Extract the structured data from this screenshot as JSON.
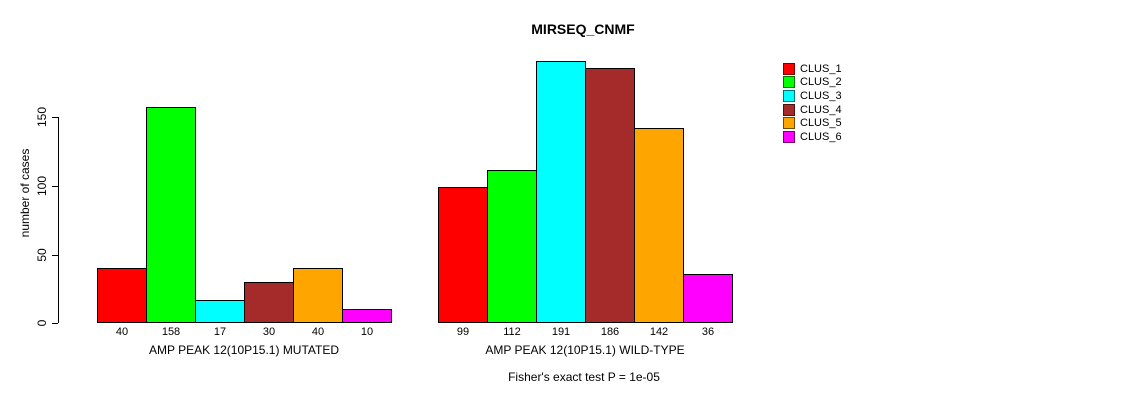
{
  "chart_data": {
    "type": "bar",
    "title": "MIRSEQ_CNMF",
    "ylabel": "number of cases",
    "xlabel": "",
    "ylim": [
      0,
      193
    ],
    "yticks": [
      0,
      50,
      100,
      150
    ],
    "grid": false,
    "legend_position": "right",
    "legend": [
      {
        "label": "CLUS_1",
        "color": "#ff0000"
      },
      {
        "label": "CLUS_2",
        "color": "#00ff00"
      },
      {
        "label": "CLUS_3",
        "color": "#00ffff"
      },
      {
        "label": "CLUS_4",
        "color": "#a52a2a"
      },
      {
        "label": "CLUS_5",
        "color": "#ffa500"
      },
      {
        "label": "CLUS_6",
        "color": "#ff00ff"
      }
    ],
    "bar_colors": [
      "#ff0000",
      "#00ff00",
      "#00ffff",
      "#a52a2a",
      "#ffa500",
      "#ff00ff"
    ],
    "groups": [
      {
        "label": "AMP PEAK 12(10P15.1) MUTATED",
        "values": [
          40,
          158,
          17,
          30,
          40,
          10
        ]
      },
      {
        "label": "AMP PEAK 12(10P15.1) WILD-TYPE",
        "values": [
          99,
          112,
          191,
          186,
          142,
          36
        ]
      }
    ],
    "annotation": "Fisher's exact test P = 1e-05"
  }
}
